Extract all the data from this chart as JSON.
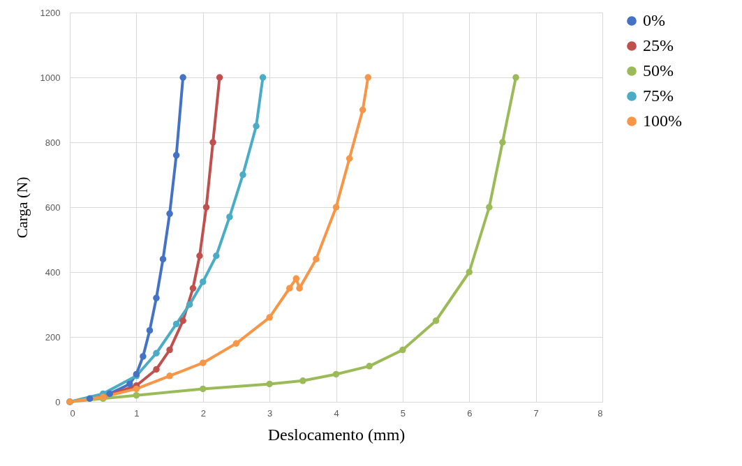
{
  "chart_data": {
    "type": "line",
    "xlabel": "Deslocamento (mm)",
    "ylabel": "Carga (N)",
    "xlim": [
      0,
      8
    ],
    "xticks": [
      0,
      1,
      2,
      3,
      4,
      5,
      6,
      7,
      8
    ],
    "ylim": [
      0,
      1200
    ],
    "yticks": [
      0,
      200,
      400,
      600,
      800,
      1000,
      1200
    ],
    "grid": true,
    "legend": "right",
    "marker": "circle",
    "line_style": "solid",
    "series": [
      {
        "name": "0%",
        "color": "#4472c4",
        "x": [
          0,
          0.3,
          0.6,
          0.9,
          1.0,
          1.1,
          1.2,
          1.3,
          1.4,
          1.5,
          1.6,
          1.7
        ],
        "values": [
          0,
          10,
          25,
          55,
          85,
          140,
          220,
          320,
          440,
          580,
          760,
          1000
        ]
      },
      {
        "name": "25%",
        "color": "#c0504d",
        "x": [
          0,
          0.5,
          1.0,
          1.3,
          1.5,
          1.7,
          1.85,
          1.95,
          2.05,
          2.15,
          2.25
        ],
        "values": [
          0,
          15,
          50,
          100,
          160,
          250,
          350,
          450,
          600,
          800,
          1000
        ]
      },
      {
        "name": "50%",
        "color": "#9bbb59",
        "x": [
          0,
          0.5,
          1,
          2,
          3,
          3.5,
          4,
          4.5,
          5,
          5.5,
          6,
          6.3,
          6.5,
          6.7
        ],
        "values": [
          0,
          10,
          20,
          40,
          55,
          65,
          85,
          110,
          160,
          250,
          400,
          600,
          800,
          1000
        ]
      },
      {
        "name": "75%",
        "color": "#4bacc6",
        "x": [
          0,
          0.5,
          1.0,
          1.3,
          1.6,
          1.8,
          2.0,
          2.2,
          2.4,
          2.6,
          2.8,
          2.9
        ],
        "values": [
          0,
          25,
          80,
          150,
          240,
          300,
          370,
          450,
          570,
          700,
          850,
          1000
        ]
      },
      {
        "name": "100%",
        "color": "#f79646",
        "x": [
          0,
          0.5,
          1,
          1.5,
          2,
          2.5,
          3,
          3.3,
          3.4,
          3.45,
          3.7,
          4.0,
          4.2,
          4.4,
          4.48
        ],
        "values": [
          0,
          15,
          40,
          80,
          120,
          180,
          260,
          350,
          380,
          350,
          440,
          600,
          750,
          900,
          1000
        ]
      }
    ]
  }
}
